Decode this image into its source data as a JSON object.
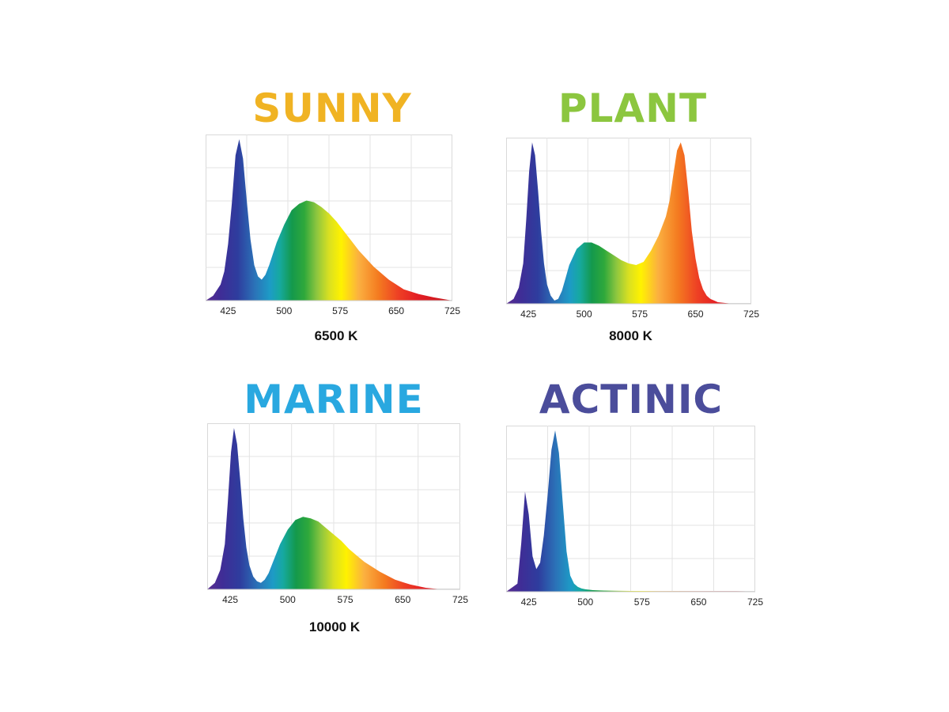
{
  "chart_data": [
    {
      "type": "area",
      "title": "SUNNY",
      "title_color": "#f0b323",
      "caption": "6500 K",
      "x_ticks": [
        425,
        500,
        575,
        650,
        725
      ],
      "xlim": [
        395,
        725
      ],
      "ylim": [
        0,
        100
      ],
      "grid": true,
      "x": [
        395,
        405,
        415,
        420,
        425,
        430,
        435,
        440,
        445,
        450,
        455,
        460,
        465,
        470,
        475,
        480,
        490,
        500,
        510,
        520,
        530,
        540,
        550,
        560,
        570,
        580,
        590,
        600,
        620,
        640,
        660,
        680,
        700,
        725
      ],
      "y": [
        0,
        3,
        10,
        18,
        35,
        60,
        90,
        100,
        88,
        62,
        38,
        22,
        15,
        13,
        16,
        22,
        36,
        47,
        56,
        60,
        62,
        61,
        58,
        54,
        49,
        43,
        37,
        31,
        21,
        13,
        7,
        4,
        2,
        0
      ]
    },
    {
      "type": "area",
      "title": "PLANT",
      "title_color": "#8cc63f",
      "caption": "8000 K",
      "x_ticks": [
        425,
        500,
        575,
        650,
        725
      ],
      "xlim": [
        395,
        725
      ],
      "ylim": [
        0,
        100
      ],
      "grid": true,
      "x": [
        395,
        405,
        412,
        418,
        422,
        426,
        430,
        434,
        438,
        442,
        446,
        450,
        455,
        460,
        465,
        470,
        475,
        480,
        490,
        500,
        510,
        520,
        530,
        540,
        550,
        560,
        570,
        580,
        590,
        600,
        610,
        615,
        620,
        625,
        630,
        635,
        640,
        645,
        650,
        655,
        660,
        665,
        670,
        675,
        680,
        690,
        700,
        725
      ],
      "y": [
        0,
        3,
        10,
        25,
        52,
        82,
        100,
        92,
        70,
        45,
        25,
        12,
        5,
        2,
        3,
        8,
        16,
        24,
        34,
        38,
        38,
        36,
        33,
        30,
        27,
        25,
        24,
        26,
        33,
        42,
        54,
        64,
        80,
        95,
        100,
        92,
        70,
        45,
        28,
        16,
        9,
        5,
        3,
        2,
        1,
        0.5,
        0,
        0
      ]
    },
    {
      "type": "area",
      "title": "MARINE",
      "title_color": "#29a8e0",
      "caption": "10000 K",
      "x_ticks": [
        425,
        500,
        575,
        650,
        725
      ],
      "xlim": [
        395,
        725
      ],
      "ylim": [
        0,
        100
      ],
      "grid": true,
      "x": [
        395,
        405,
        412,
        418,
        422,
        426,
        430,
        434,
        438,
        442,
        446,
        450,
        455,
        460,
        465,
        470,
        475,
        480,
        490,
        500,
        510,
        520,
        530,
        540,
        550,
        560,
        570,
        580,
        590,
        600,
        620,
        640,
        660,
        680,
        700,
        725
      ],
      "y": [
        0,
        4,
        12,
        28,
        55,
        85,
        100,
        90,
        68,
        44,
        26,
        15,
        8,
        5,
        4,
        6,
        10,
        16,
        28,
        37,
        43,
        45,
        44,
        42,
        38,
        34,
        30,
        25,
        21,
        17,
        11,
        6,
        3,
        1,
        0,
        0
      ]
    },
    {
      "type": "area",
      "title": "ACTINIC",
      "title_color": "#4b4d9b",
      "caption": "",
      "x_ticks": [
        425,
        500,
        575,
        650,
        725
      ],
      "xlim": [
        395,
        725
      ],
      "ylim": [
        0,
        100
      ],
      "grid": true,
      "x": [
        395,
        410,
        415,
        420,
        425,
        430,
        435,
        440,
        445,
        450,
        455,
        460,
        465,
        470,
        475,
        480,
        485,
        490,
        495,
        500,
        510,
        520,
        540,
        560,
        600,
        650,
        700,
        725
      ],
      "y": [
        0,
        5,
        30,
        62,
        48,
        22,
        14,
        18,
        35,
        60,
        88,
        100,
        86,
        55,
        25,
        10,
        5,
        3,
        2,
        1.5,
        1,
        0.8,
        0.6,
        0.5,
        0.4,
        0.3,
        0.3,
        0.2
      ]
    }
  ]
}
